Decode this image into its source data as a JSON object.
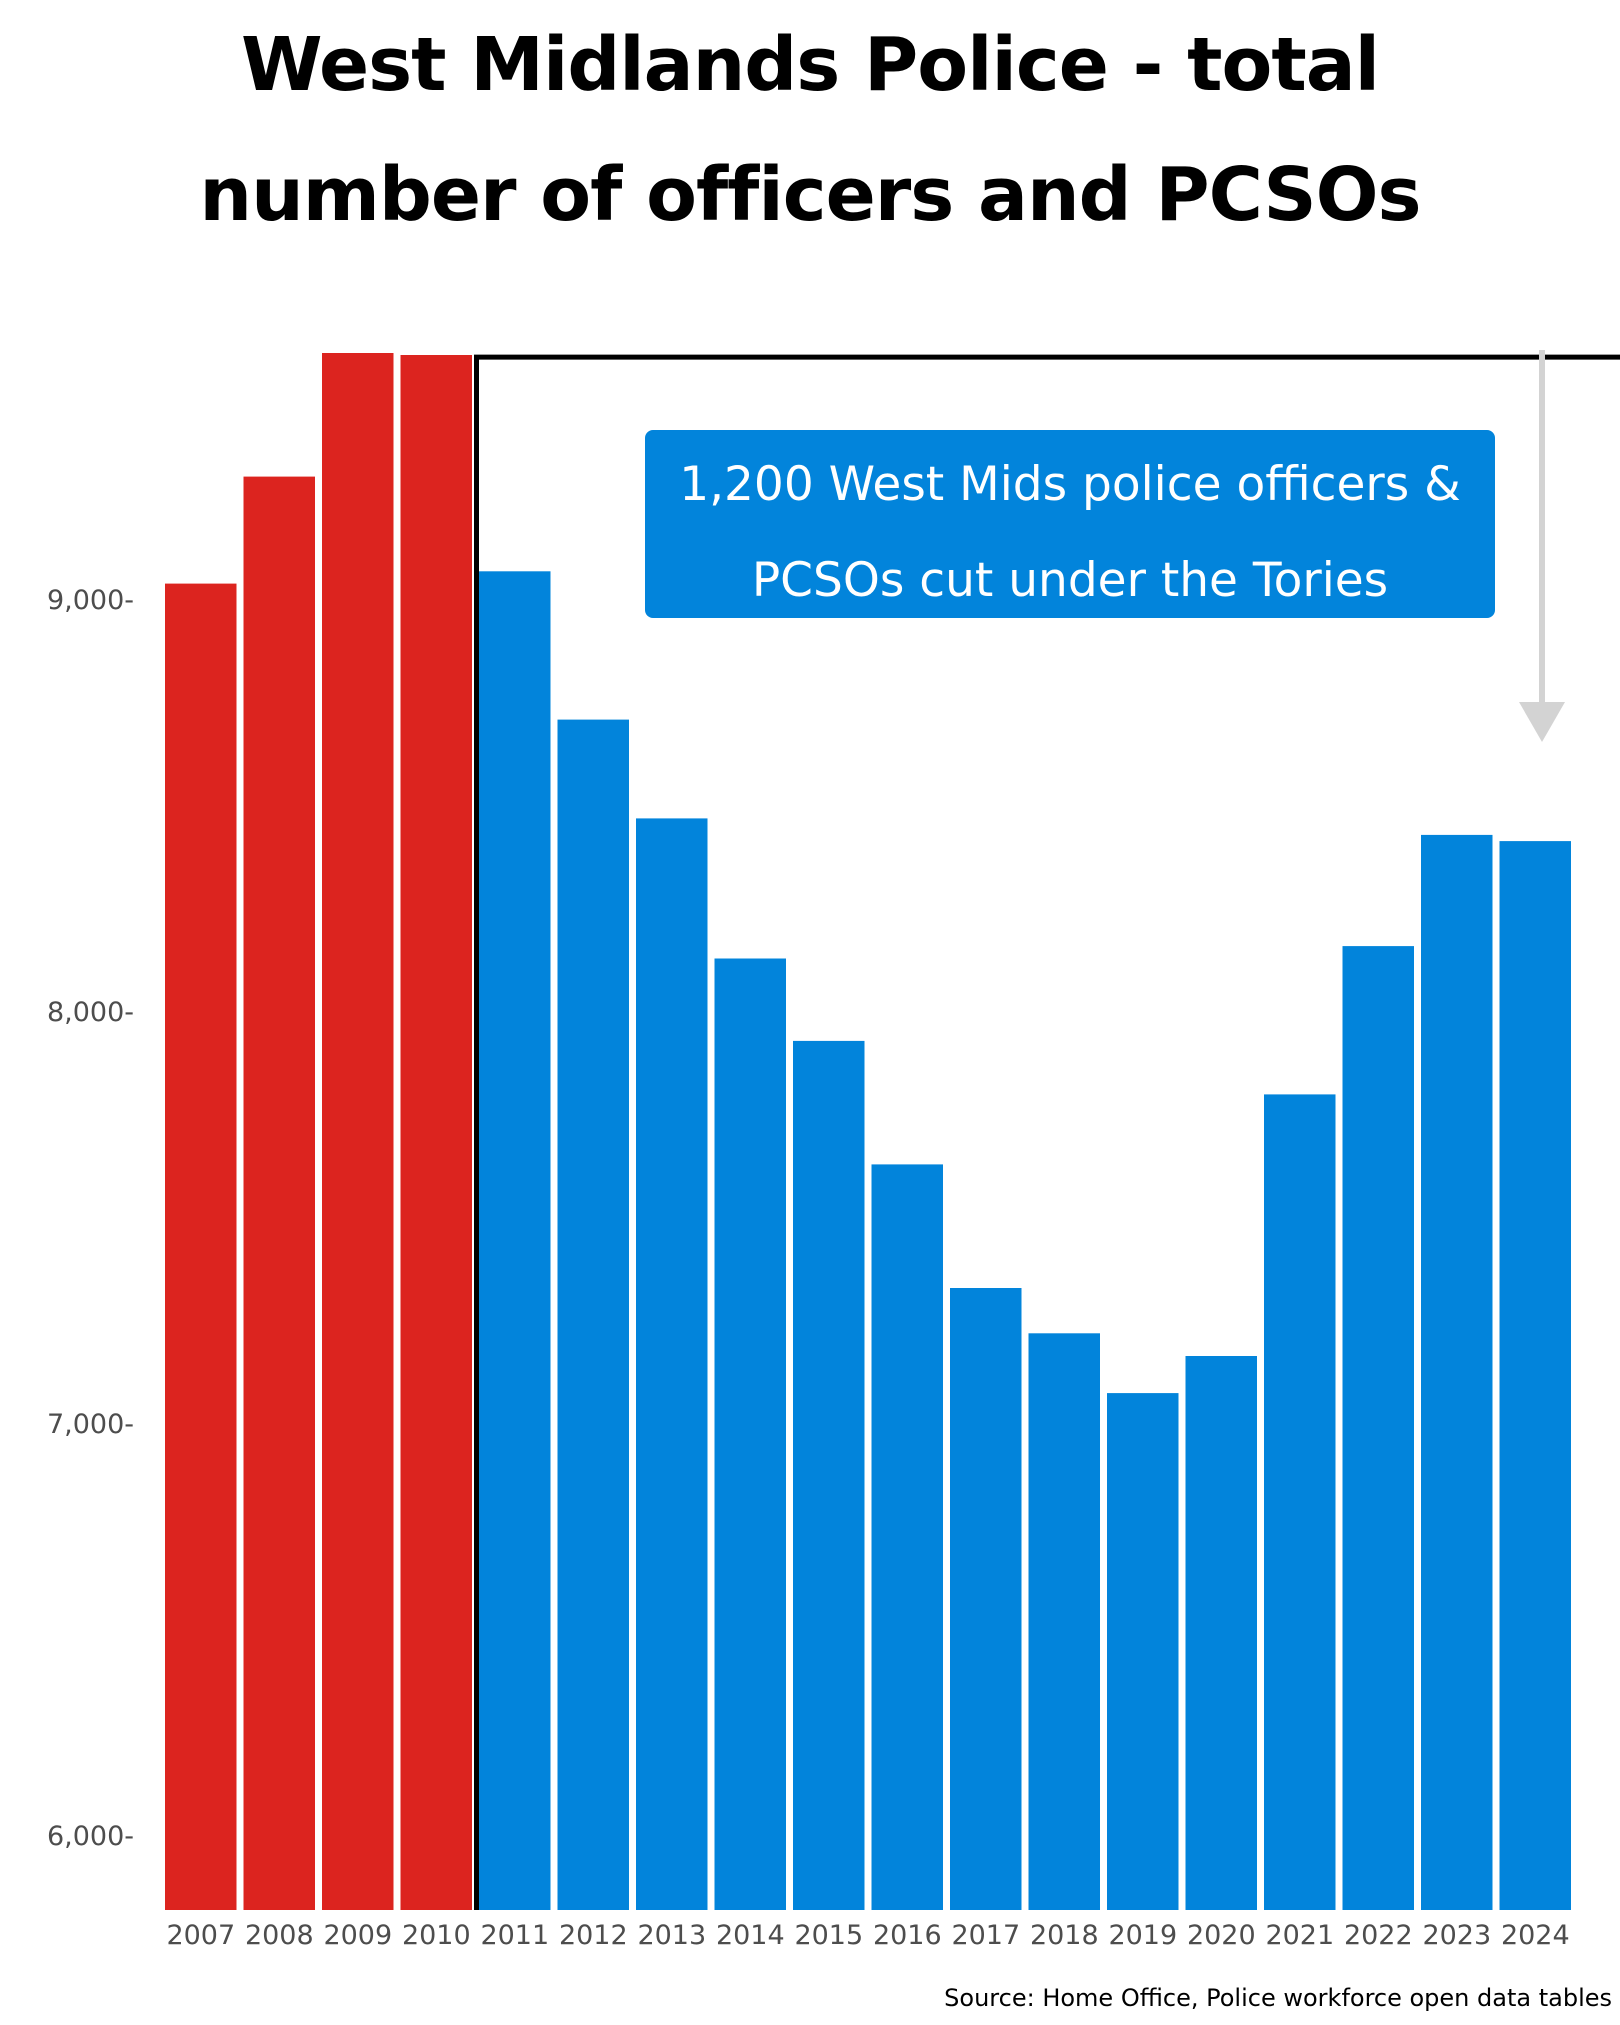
{
  "chart_data": {
    "type": "bar",
    "title": "West Midlands Police - total number of officers and PCSOs",
    "title_lines": [
      "West Midlands Police - total",
      "number of officers and PCSOs"
    ],
    "categories": [
      "2007",
      "2008",
      "2009",
      "2010",
      "2011",
      "2012",
      "2013",
      "2014",
      "2015",
      "2016",
      "2017",
      "2018",
      "2019",
      "2020",
      "2021",
      "2022",
      "2023",
      "2024"
    ],
    "values": [
      9040,
      9300,
      9600,
      9595,
      9070,
      8710,
      8470,
      8130,
      7930,
      7630,
      7330,
      7220,
      7075,
      7165,
      7800,
      8160,
      8430,
      8415
    ],
    "bar_colors": [
      "#dc241f",
      "#dc241f",
      "#dc241f",
      "#dc241f",
      "#0284db",
      "#0284db",
      "#0284db",
      "#0284db",
      "#0284db",
      "#0284db",
      "#0284db",
      "#0284db",
      "#0284db",
      "#0284db",
      "#0284db",
      "#0284db",
      "#0284db",
      "#0284db"
    ],
    "ylim": [
      5820,
      9850
    ],
    "yticks": [
      6000,
      7000,
      8000,
      9000
    ],
    "ytick_labels": [
      "6,000-",
      "7,000-",
      "8,000-",
      "9,000-"
    ],
    "xlabel": "",
    "ylabel": "",
    "grid": false,
    "legend": "none",
    "reference_line_value": 9590,
    "reference_line_from_category": "2011",
    "annotation": {
      "lines": [
        "1,200 West Mids police officers &",
        "PCSOs cut under the Tories"
      ]
    },
    "source": "Source: Home Office, Police workforce open data tables"
  },
  "colors": {
    "labour": "#dc241f",
    "tory": "#0284db",
    "arrow": "#d3d3d3",
    "reference_line": "#000000"
  }
}
